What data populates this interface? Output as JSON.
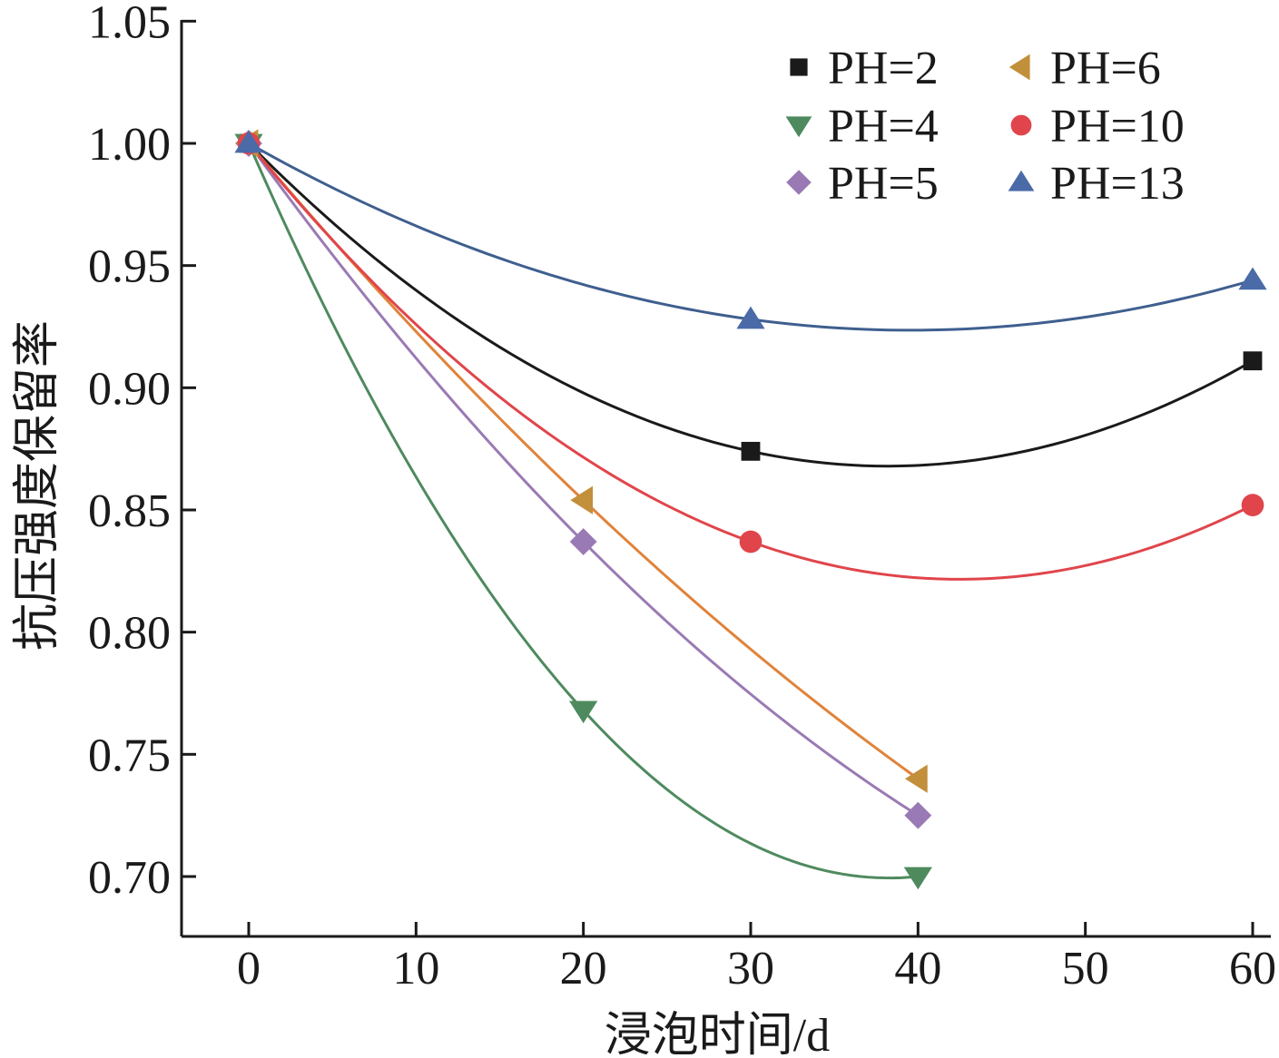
{
  "chart_data": {
    "type": "line",
    "title": "",
    "xlabel": "浸泡时间/d",
    "ylabel": "抗压强度保留率",
    "xlim": [
      -4,
      60
    ],
    "ylim": [
      0.675,
      1.05
    ],
    "x_ticks": [
      0,
      10,
      20,
      30,
      40,
      50,
      60
    ],
    "x_tick_labels": [
      "0",
      "10",
      "20",
      "30",
      "40",
      "50",
      "60"
    ],
    "y_ticks": [
      0.7,
      0.75,
      0.8,
      0.85,
      0.9,
      0.95,
      1.0,
      1.05
    ],
    "y_tick_labels": [
      "0.70",
      "0.75",
      "0.80",
      "0.85",
      "0.90",
      "0.95",
      "1.00",
      "1.05"
    ],
    "grid": false,
    "legend_position": "top-right",
    "series": [
      {
        "name": "PH=2",
        "color": "#1a1a1a",
        "marker": "square",
        "x": [
          0,
          30,
          60
        ],
        "values": [
          1.0,
          0.874,
          0.911
        ]
      },
      {
        "name": "PH=4",
        "color": "#4e8a5e",
        "marker": "triangle-down",
        "x": [
          0,
          20,
          40
        ],
        "values": [
          1.0,
          0.768,
          0.7
        ]
      },
      {
        "name": "PH=5",
        "color": "#9a7ab4",
        "marker": "diamond",
        "x": [
          0,
          20,
          40
        ],
        "values": [
          1.0,
          0.837,
          0.725
        ]
      },
      {
        "name": "PH=6",
        "color": "#c28f3a",
        "line_color": "#e0833a",
        "marker": "triangle-left",
        "x": [
          0,
          20,
          40
        ],
        "values": [
          1.0,
          0.854,
          0.74
        ]
      },
      {
        "name": "PH=10",
        "color": "#e0454b",
        "marker": "circle",
        "x": [
          0,
          30,
          60
        ],
        "values": [
          1.0,
          0.837,
          0.852
        ]
      },
      {
        "name": "PH=13",
        "color": "#4a6aa8",
        "line_color": "#3f5f8f",
        "marker": "triangle-up",
        "x": [
          0,
          30,
          60
        ],
        "values": [
          1.0,
          0.928,
          0.944
        ]
      }
    ]
  }
}
